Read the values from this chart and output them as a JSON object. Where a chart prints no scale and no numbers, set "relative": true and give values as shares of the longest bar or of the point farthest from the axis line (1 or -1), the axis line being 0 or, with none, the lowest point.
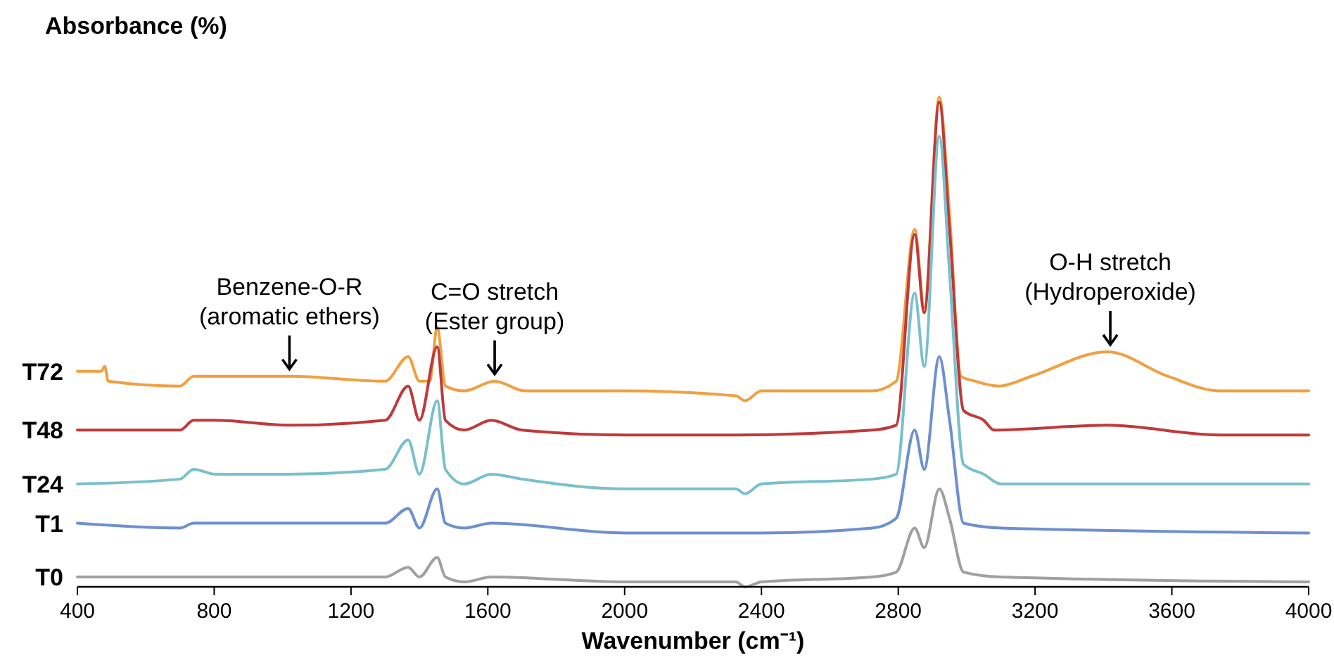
{
  "chart_data": {
    "type": "line",
    "relative": true,
    "ylabel": "Absorbance (%)",
    "xlabel": "Wavenumber (cm⁻¹)",
    "xlim": [
      400,
      4000
    ],
    "xticks": [
      400,
      800,
      1200,
      1600,
      2000,
      2400,
      2800,
      3200,
      3600,
      4000
    ],
    "annotations": [
      {
        "text": "Benzene-O-R\n(aromatic ethers)",
        "x": 1020,
        "y": 0.43
      },
      {
        "text": "C=O stretch\n(Ester group)",
        "x": 1620,
        "y": 0.42
      },
      {
        "text": "O-H stretch\n(Hydroperoxide)",
        "x": 3420,
        "y": 0.48
      }
    ],
    "series": [
      {
        "name": "T72",
        "color": "#f0a040",
        "x": [
          400,
          470,
          480,
          490,
          700,
          740,
          810,
          1020,
          1300,
          1367,
          1400,
          1430,
          1452,
          1476,
          1531,
          1620,
          1709,
          2000,
          2325,
          2352,
          2400,
          2724,
          2794,
          2848,
          2876,
          2920,
          2950,
          2983,
          3024,
          3094,
          3189,
          3411,
          3588,
          3740,
          4000
        ],
        "values": [
          0.44,
          0.44,
          0.45,
          0.42,
          0.41,
          0.43,
          0.43,
          0.43,
          0.42,
          0.47,
          0.42,
          0.42,
          0.53,
          0.41,
          0.4,
          0.42,
          0.4,
          0.4,
          0.39,
          0.38,
          0.4,
          0.4,
          0.42,
          0.73,
          0.57,
          1.0,
          0.76,
          0.43,
          0.42,
          0.41,
          0.43,
          0.48,
          0.43,
          0.4,
          0.4
        ]
      },
      {
        "name": "T48",
        "color": "#c0393b",
        "x": [
          400,
          700,
          740,
          802,
          1017,
          1300,
          1367,
          1400,
          1452,
          1476,
          1531,
          1610,
          1700,
          2000,
          2325,
          2724,
          2794,
          2848,
          2876,
          2920,
          2950,
          2991,
          3050,
          3080,
          3411,
          3740,
          4000
        ],
        "values": [
          0.32,
          0.32,
          0.34,
          0.34,
          0.33,
          0.34,
          0.41,
          0.34,
          0.49,
          0.34,
          0.32,
          0.34,
          0.32,
          0.31,
          0.31,
          0.32,
          0.33,
          0.72,
          0.56,
          0.99,
          0.73,
          0.36,
          0.34,
          0.32,
          0.33,
          0.31,
          0.31
        ]
      },
      {
        "name": "T24",
        "color": "#79c0cc",
        "x": [
          400,
          700,
          740,
          802,
          1017,
          1300,
          1367,
          1400,
          1452,
          1476,
          1531,
          1610,
          1700,
          2000,
          2325,
          2352,
          2400,
          2724,
          2794,
          2848,
          2876,
          2920,
          2950,
          2991,
          3050,
          3100,
          3411,
          4000
        ],
        "values": [
          0.21,
          0.22,
          0.24,
          0.23,
          0.23,
          0.24,
          0.3,
          0.23,
          0.38,
          0.24,
          0.21,
          0.23,
          0.22,
          0.2,
          0.2,
          0.19,
          0.21,
          0.22,
          0.23,
          0.6,
          0.45,
          0.92,
          0.64,
          0.25,
          0.23,
          0.21,
          0.21,
          0.21
        ]
      },
      {
        "name": "T1",
        "color": "#6e8fd0",
        "x": [
          400,
          700,
          740,
          1017,
          1300,
          1367,
          1400,
          1452,
          1476,
          1531,
          1610,
          2000,
          2400,
          2724,
          2794,
          2848,
          2876,
          2920,
          2950,
          2991,
          3100,
          4000
        ],
        "values": [
          0.13,
          0.12,
          0.13,
          0.13,
          0.13,
          0.16,
          0.12,
          0.2,
          0.13,
          0.12,
          0.13,
          0.11,
          0.11,
          0.12,
          0.14,
          0.32,
          0.24,
          0.47,
          0.34,
          0.13,
          0.12,
          0.11
        ]
      },
      {
        "name": "T0",
        "color": "#a0a0a0",
        "x": [
          400,
          700,
          740,
          1300,
          1367,
          1400,
          1452,
          1476,
          1531,
          1610,
          2000,
          2325,
          2352,
          2400,
          2724,
          2794,
          2848,
          2876,
          2920,
          2950,
          2991,
          3100,
          4000
        ],
        "values": [
          0.02,
          0.02,
          0.02,
          0.02,
          0.04,
          0.02,
          0.06,
          0.02,
          0.01,
          0.02,
          0.01,
          0.01,
          0.0,
          0.01,
          0.02,
          0.03,
          0.12,
          0.08,
          0.2,
          0.14,
          0.03,
          0.02,
          0.01
        ]
      }
    ]
  }
}
